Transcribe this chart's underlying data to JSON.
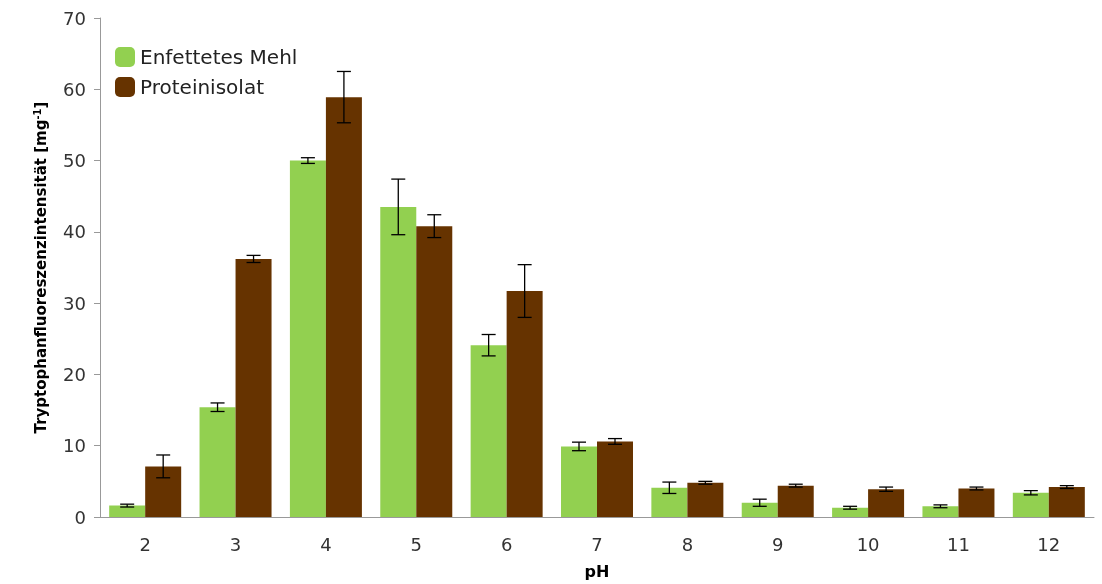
{
  "chart_data": {
    "type": "bar",
    "xlabel": "pH",
    "ylabel": "Tryptophanfluoreszenzintensität [mg$^{-1}$]",
    "categories": [
      "2",
      "3",
      "4",
      "5",
      "6",
      "7",
      "8",
      "9",
      "10",
      "11",
      "12"
    ],
    "series": [
      {
        "name": "Enfettetes Mehl",
        "color": "#92d050",
        "values": [
          1.6,
          15.4,
          50.0,
          43.5,
          24.1,
          9.9,
          4.1,
          2.0,
          1.3,
          1.5,
          3.4
        ],
        "errors": [
          0.2,
          0.6,
          0.4,
          3.9,
          1.5,
          0.6,
          0.8,
          0.5,
          0.2,
          0.2,
          0.3
        ]
      },
      {
        "name": "Proteinisolat",
        "color": "#663300",
        "values": [
          7.1,
          36.2,
          58.9,
          40.8,
          31.7,
          10.6,
          4.8,
          4.4,
          3.9,
          4.0,
          4.2
        ],
        "errors": [
          1.6,
          0.5,
          3.6,
          1.6,
          3.7,
          0.4,
          0.2,
          0.2,
          0.3,
          0.2,
          0.2
        ]
      }
    ],
    "ylim": [
      0,
      70
    ],
    "yticks": [
      0,
      10,
      20,
      30,
      40,
      50,
      60,
      70
    ],
    "grid": false,
    "legend": "top left"
  }
}
